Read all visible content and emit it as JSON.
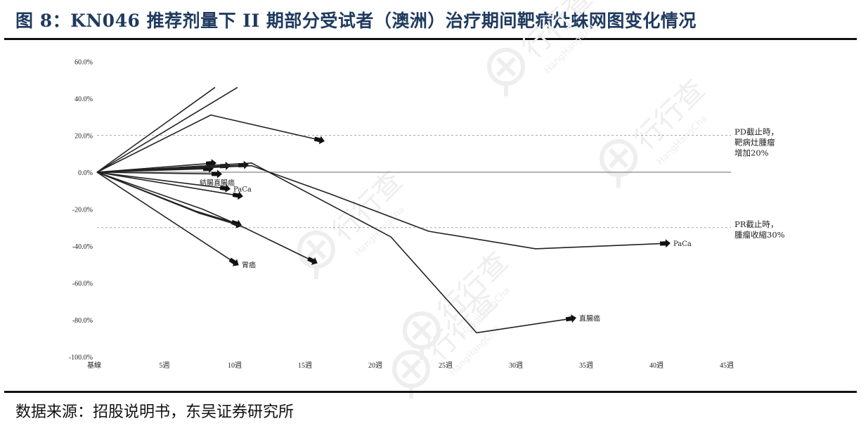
{
  "header": {
    "title": "图 8：KN046 推荐剂量下 II 期部分受试者（澳洲）治疗期间靶病灶蛛网图变化情况"
  },
  "footer": {
    "source": "数据来源：招股说明书，东吴证券研究所"
  },
  "watermark": {
    "text_cn": "行行查",
    "text_en": "HangHangCha"
  },
  "chart_data": {
    "type": "line",
    "title": "KN046 推荐剂量下 II 期部分受试者（澳洲）治疗期间靶病灶蛛网图变化情况",
    "xlabel": "",
    "ylabel": "",
    "x_tick_labels": [
      "基線",
      "5週",
      "10週",
      "15週",
      "20週",
      "25週",
      "30週",
      "35週",
      "40週",
      "45週"
    ],
    "x_tick_values": [
      0,
      5,
      10,
      15,
      20,
      25,
      30,
      35,
      40,
      45
    ],
    "y_tick_labels": [
      "60.0%",
      "40.0%",
      "20.0%",
      "0.0%",
      "-20.0%",
      "-40.0%",
      "-60.0%",
      "-80.0%",
      "-100.0%"
    ],
    "ylim": [
      -100,
      60
    ],
    "xlim": [
      0,
      45
    ],
    "grid": false,
    "reference_lines": [
      {
        "y": 20,
        "style": "dotted",
        "label": "PD截止時，\n靶病灶腫瘤\n增加20%"
      },
      {
        "y": 0,
        "style": "solid",
        "label": ""
      },
      {
        "y": -30,
        "style": "dotted",
        "label": "PR截止時，\n腫瘤收縮30%"
      }
    ],
    "series": [
      {
        "name": "patient-1",
        "points": [
          [
            0,
            0
          ],
          [
            8.4,
            46
          ]
        ],
        "arrow": false,
        "label": ""
      },
      {
        "name": "patient-2",
        "points": [
          [
            0,
            0
          ],
          [
            10,
            46
          ]
        ],
        "arrow": false,
        "label": ""
      },
      {
        "name": "patient-3",
        "points": [
          [
            0,
            0
          ],
          [
            8.1,
            31
          ],
          [
            16.1,
            17
          ]
        ],
        "arrow": true,
        "label": ""
      },
      {
        "name": "patient-4",
        "points": [
          [
            0,
            0
          ],
          [
            8.4,
            5
          ]
        ],
        "arrow": true,
        "label": ""
      },
      {
        "name": "patient-5",
        "points": [
          [
            0,
            0
          ],
          [
            9.4,
            3.5
          ]
        ],
        "arrow": true,
        "label": ""
      },
      {
        "name": "patient-6",
        "points": [
          [
            0,
            0
          ],
          [
            10.7,
            4
          ]
        ],
        "arrow": true,
        "label": ""
      },
      {
        "name": "patient-7",
        "points": [
          [
            0,
            0
          ],
          [
            8.2,
            2
          ]
        ],
        "arrow": true,
        "label": ""
      },
      {
        "name": "patient-8",
        "points": [
          [
            0,
            0
          ],
          [
            8.8,
            -1
          ]
        ],
        "arrow": true,
        "label": "結腸直腸癌"
      },
      {
        "name": "patient-9",
        "points": [
          [
            0,
            0
          ],
          [
            9.4,
            -9
          ]
        ],
        "arrow": true,
        "label": "PaCa"
      },
      {
        "name": "patient-10",
        "points": [
          [
            0,
            0
          ],
          [
            10.3,
            -13
          ]
        ],
        "arrow": true,
        "label": ""
      },
      {
        "name": "patient-11",
        "points": [
          [
            0,
            0
          ],
          [
            7.5,
            -20
          ],
          [
            10.2,
            -29
          ]
        ],
        "arrow": true,
        "label": ""
      },
      {
        "name": "patient-12",
        "points": [
          [
            0,
            0
          ],
          [
            7,
            -21
          ],
          [
            10.2,
            -28.5
          ]
        ],
        "arrow": true,
        "label": ""
      },
      {
        "name": "patient-13",
        "points": [
          [
            0,
            0
          ],
          [
            7.2,
            -22
          ],
          [
            10.2,
            -29
          ],
          [
            15.6,
            -49
          ]
        ],
        "arrow": true,
        "label": ""
      },
      {
        "name": "patient-14",
        "points": [
          [
            0,
            0
          ],
          [
            10,
            -50
          ]
        ],
        "arrow": true,
        "label": "胃癌"
      },
      {
        "name": "patient-15",
        "points": [
          [
            0,
            0
          ],
          [
            11,
            3.5
          ],
          [
            16.5,
            -11.5
          ],
          [
            23.6,
            -32
          ],
          [
            31.2,
            -41.5
          ],
          [
            40.7,
            -38.5
          ]
        ],
        "arrow": true,
        "label": "PaCa"
      },
      {
        "name": "patient-16",
        "points": [
          [
            0,
            0
          ],
          [
            11,
            5
          ],
          [
            20.9,
            -35
          ],
          [
            27,
            -87
          ],
          [
            34,
            -79
          ]
        ],
        "arrow": true,
        "label": "直腸癌"
      }
    ]
  }
}
